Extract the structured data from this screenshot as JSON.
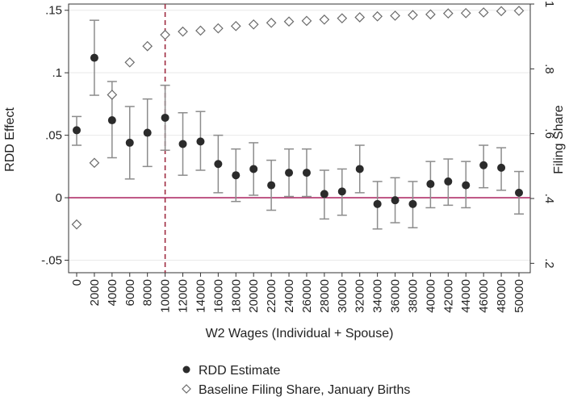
{
  "chart_data": {
    "type": "scatter",
    "title": "",
    "xlabel": "W2 Wages (Individual + Spouse)",
    "ylabel": "RDD Effect",
    "ylabel_right": "Filing Share",
    "x": [
      0,
      2000,
      4000,
      6000,
      8000,
      10000,
      12000,
      14000,
      16000,
      18000,
      20000,
      22000,
      24000,
      26000,
      28000,
      30000,
      32000,
      34000,
      36000,
      38000,
      40000,
      42000,
      44000,
      46000,
      48000,
      50000
    ],
    "x_tick_labels": [
      "0",
      "2000",
      "4000",
      "6000",
      "8000",
      "10000",
      "12000",
      "14000",
      "16000",
      "18000",
      "20000",
      "22000",
      "24000",
      "26000",
      "28000",
      "30000",
      "32000",
      "34000",
      "36000",
      "38000",
      "40000",
      "42000",
      "44000",
      "46000",
      "48000",
      "50000"
    ],
    "y_left_ticks": [
      -0.05,
      0,
      0.05,
      0.1,
      0.15
    ],
    "y_left_tick_labels": [
      "-.05",
      "0",
      ".05",
      ".1",
      ".15"
    ],
    "y_left_lim": [
      -0.06,
      0.155
    ],
    "y_right_ticks": [
      0.2,
      0.4,
      0.6,
      0.8,
      1.0
    ],
    "y_right_tick_labels": [
      ".2",
      ".4",
      ".6",
      ".8",
      "1"
    ],
    "y_right_lim": [
      0.171,
      1.0
    ],
    "vertical_line_x": 10000,
    "horizontal_line_y": 0,
    "grid": "horizontal",
    "legend_position": "bottom",
    "series": [
      {
        "name": "RDD Estimate",
        "axis": "left",
        "marker": "filled-circle",
        "values": [
          0.054,
          0.112,
          0.062,
          0.044,
          0.052,
          0.064,
          0.043,
          0.045,
          0.027,
          0.018,
          0.023,
          0.01,
          0.02,
          0.02,
          0.003,
          0.005,
          0.023,
          -0.005,
          -0.002,
          -0.005,
          0.011,
          0.013,
          0.01,
          0.026,
          0.024,
          0.004
        ],
        "ci_low": [
          0.042,
          0.082,
          0.032,
          0.015,
          0.025,
          0.038,
          0.018,
          0.022,
          0.004,
          -0.003,
          0.002,
          -0.01,
          0.001,
          0.001,
          -0.017,
          -0.014,
          0.004,
          -0.025,
          -0.02,
          -0.024,
          -0.008,
          -0.006,
          -0.008,
          0.008,
          0.006,
          -0.013
        ],
        "ci_high": [
          0.065,
          0.142,
          0.093,
          0.073,
          0.079,
          0.09,
          0.068,
          0.069,
          0.05,
          0.039,
          0.044,
          0.03,
          0.039,
          0.039,
          0.022,
          0.023,
          0.042,
          0.013,
          0.016,
          0.013,
          0.029,
          0.031,
          0.029,
          0.042,
          0.04,
          0.021
        ]
      },
      {
        "name": "Baseline Filing Share, January Births",
        "axis": "right",
        "marker": "hollow-diamond",
        "values": [
          0.32,
          0.51,
          0.72,
          0.82,
          0.87,
          0.905,
          0.915,
          0.918,
          0.925,
          0.932,
          0.937,
          0.942,
          0.946,
          0.948,
          0.952,
          0.956,
          0.959,
          0.962,
          0.964,
          0.966,
          0.968,
          0.971,
          0.972,
          0.974,
          0.978,
          0.979
        ]
      }
    ],
    "colors": {
      "estimate": "#2b2b2b",
      "ci": "#8c8c8c",
      "baseline": "#6b6b6b",
      "zero_line": "#b0306a",
      "cutoff_line": "#9e2a40",
      "grid": "#e9e9e9"
    }
  }
}
